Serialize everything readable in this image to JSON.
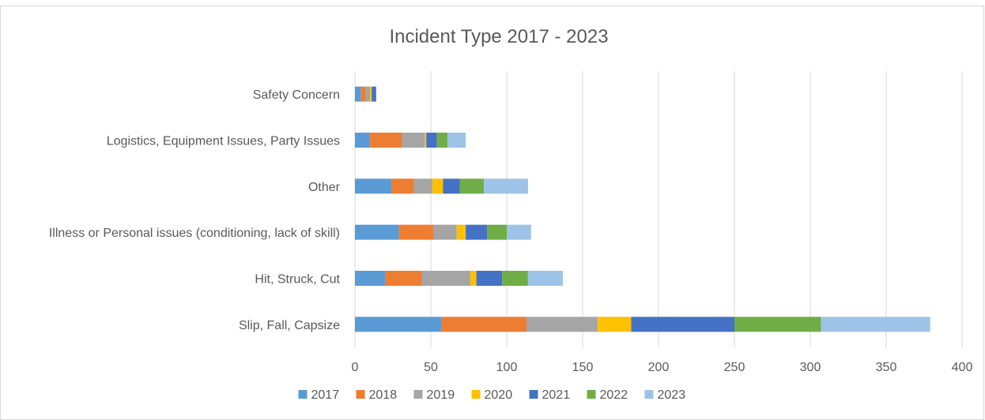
{
  "chart_data": {
    "type": "bar",
    "orientation": "horizontal",
    "stacked": true,
    "title": "Incident Type 2017 - 2023",
    "xlabel": "",
    "ylabel": "",
    "xlim": [
      0,
      400
    ],
    "x_ticks": [
      "0",
      "50",
      "100",
      "150",
      "200",
      "250",
      "300",
      "350",
      "400"
    ],
    "grid": "vertical",
    "legend": "bottom",
    "categories": [
      "Safety Concern",
      "Logistics, Equipment Issues, Party Issues",
      "Other",
      "Illness or Personal issues (conditioning, lack of skill)",
      "Hit, Struck, Cut",
      "Slip, Fall, Capsize"
    ],
    "series": [
      {
        "name": "2017",
        "color": "#5B9BD5",
        "values": [
          4,
          10,
          24,
          29,
          20,
          57
        ]
      },
      {
        "name": "2018",
        "color": "#ED7D31",
        "values": [
          3,
          21,
          15,
          23,
          24,
          56
        ]
      },
      {
        "name": "2019",
        "color": "#A5A5A5",
        "values": [
          3,
          15,
          12,
          15,
          32,
          47
        ]
      },
      {
        "name": "2020",
        "color": "#FFC000",
        "values": [
          1,
          1,
          7,
          6,
          4,
          22
        ]
      },
      {
        "name": "2021",
        "color": "#4472C4",
        "values": [
          3,
          7,
          11,
          14,
          17,
          68
        ]
      },
      {
        "name": "2022",
        "color": "#70AD47",
        "values": [
          0,
          7,
          16,
          13,
          17,
          57
        ]
      },
      {
        "name": "2023",
        "color": "#9DC3E6",
        "values": [
          0,
          12,
          29,
          16,
          23,
          72
        ]
      }
    ]
  }
}
